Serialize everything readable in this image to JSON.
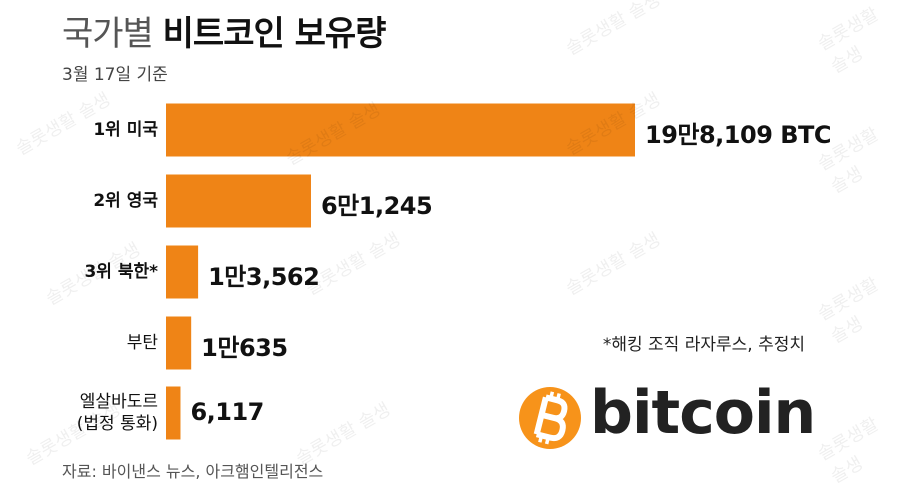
{
  "header": {
    "title_light": "국가별",
    "title_bold": "비트코인 보유량",
    "subtitle": "3월 17일 기준"
  },
  "chart_data": {
    "type": "bar",
    "orientation": "horizontal",
    "categories": [
      "1위 미국",
      "2위 영국",
      "3위 북한*",
      "부탄",
      "엘살바도르\n(법정 통화)"
    ],
    "values": [
      198109,
      61245,
      13562,
      10635,
      6117
    ],
    "value_labels": [
      "19만8,109 BTC",
      "6만1,245",
      "1만3,562",
      "1만635",
      "6,117"
    ],
    "color": "#ef8416"
  },
  "note": "*해킹 조직 라자루스, 추정치",
  "source": "자료: 바이낸스 뉴스, 아크햄인텔리전스",
  "logo_text": "bitcoin",
  "watermark": "솔롯생활 솔생"
}
